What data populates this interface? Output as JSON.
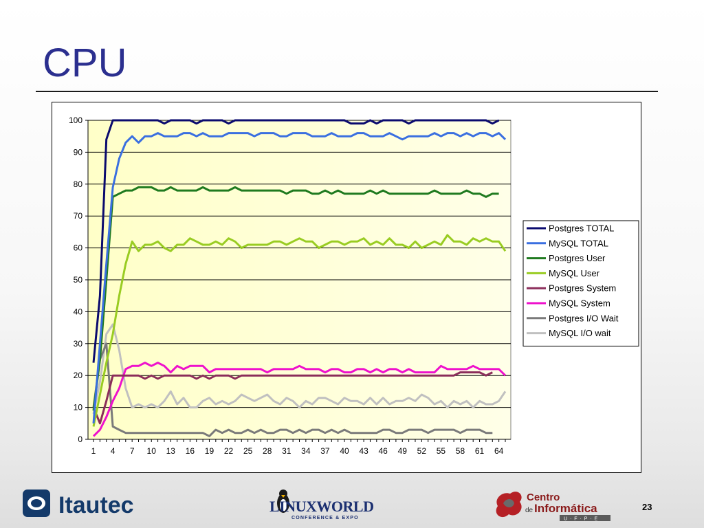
{
  "slide": {
    "title": "CPU",
    "page_number": "23"
  },
  "logos": {
    "itautec": "Itautec",
    "linuxworld": "LINUXWORLD",
    "linuxworld_sub": "CONFERENCE & EXPO",
    "centro_line1": "Centro",
    "centro_line2_prefix": "de",
    "centro_line2": "Informática",
    "centro_sub": "U · F · P · E"
  },
  "colors": {
    "title": "#2b2f8f",
    "plot_bg_top": "#ffffc8",
    "plot_bg_bottom": "#ffffe8"
  },
  "chart_data": {
    "type": "line",
    "title": "",
    "xlabel": "",
    "ylabel": "",
    "ylim": [
      0,
      100
    ],
    "yticks": [
      0,
      10,
      20,
      30,
      40,
      50,
      60,
      70,
      80,
      90,
      100
    ],
    "xticks": [
      1,
      4,
      7,
      10,
      13,
      16,
      19,
      22,
      25,
      28,
      31,
      34,
      37,
      40,
      43,
      46,
      49,
      52,
      55,
      58,
      61,
      64
    ],
    "x": [
      1,
      2,
      3,
      4,
      5,
      6,
      7,
      8,
      9,
      10,
      11,
      12,
      13,
      14,
      15,
      16,
      17,
      18,
      19,
      20,
      21,
      22,
      23,
      24,
      25,
      26,
      27,
      28,
      29,
      30,
      31,
      32,
      33,
      34,
      35,
      36,
      37,
      38,
      39,
      40,
      41,
      42,
      43,
      44,
      45,
      46,
      47,
      48,
      49,
      50,
      51,
      52,
      53,
      54,
      55,
      56,
      57,
      58,
      59,
      60,
      61,
      62,
      63,
      64,
      65
    ],
    "grid": "horizontal",
    "legend_position": "right",
    "series": [
      {
        "name": "Postgres TOTAL",
        "color": "#0a0a6e",
        "values": [
          24,
          45,
          94,
          100,
          100,
          100,
          100,
          100,
          100,
          100,
          100,
          99,
          100,
          100,
          100,
          100,
          99,
          100,
          100,
          100,
          100,
          99,
          100,
          100,
          100,
          100,
          100,
          100,
          100,
          100,
          100,
          100,
          100,
          100,
          100,
          100,
          100,
          100,
          100,
          100,
          99,
          99,
          99,
          100,
          99,
          100,
          100,
          100,
          100,
          99,
          100,
          100,
          100,
          100,
          100,
          100,
          100,
          100,
          100,
          100,
          100,
          100,
          99,
          100,
          null
        ]
      },
      {
        "name": "MySQL TOTAL",
        "color": "#3a6fe0",
        "values": [
          5,
          30,
          55,
          79,
          88,
          93,
          95,
          93,
          95,
          95,
          96,
          95,
          95,
          95,
          96,
          96,
          95,
          96,
          95,
          95,
          95,
          96,
          96,
          96,
          96,
          95,
          96,
          96,
          96,
          95,
          95,
          96,
          96,
          96,
          95,
          95,
          95,
          96,
          95,
          95,
          95,
          96,
          96,
          95,
          95,
          95,
          96,
          95,
          94,
          95,
          95,
          95,
          95,
          96,
          95,
          96,
          96,
          95,
          96,
          95,
          96,
          96,
          95,
          96,
          94
        ]
      },
      {
        "name": "Postgres User",
        "color": "#1f7a1f",
        "values": [
          9,
          25,
          50,
          76,
          77,
          78,
          78,
          79,
          79,
          79,
          78,
          78,
          79,
          78,
          78,
          78,
          78,
          79,
          78,
          78,
          78,
          78,
          79,
          78,
          78,
          78,
          78,
          78,
          78,
          78,
          77,
          78,
          78,
          78,
          77,
          77,
          78,
          77,
          78,
          77,
          77,
          77,
          77,
          78,
          77,
          78,
          77,
          77,
          77,
          77,
          77,
          77,
          77,
          78,
          77,
          77,
          77,
          77,
          78,
          77,
          77,
          76,
          77,
          77,
          null
        ]
      },
      {
        "name": "MySQL User",
        "color": "#99cc22",
        "values": [
          4,
          14,
          24,
          33,
          45,
          55,
          62,
          59,
          61,
          61,
          62,
          60,
          59,
          61,
          61,
          63,
          62,
          61,
          61,
          62,
          61,
          63,
          62,
          60,
          61,
          61,
          61,
          61,
          62,
          62,
          61,
          62,
          63,
          62,
          62,
          60,
          61,
          62,
          62,
          61,
          62,
          62,
          63,
          61,
          62,
          61,
          63,
          61,
          61,
          60,
          62,
          60,
          61,
          62,
          61,
          64,
          62,
          62,
          61,
          63,
          62,
          63,
          62,
          62,
          59
        ]
      },
      {
        "name": "Postgres System",
        "color": "#8b2d5a",
        "values": [
          10,
          5,
          12,
          20,
          20,
          20,
          20,
          20,
          19,
          20,
          19,
          20,
          20,
          20,
          20,
          20,
          19,
          20,
          19,
          20,
          20,
          20,
          19,
          20,
          20,
          20,
          20,
          20,
          20,
          20,
          20,
          20,
          20,
          20,
          20,
          20,
          20,
          20,
          20,
          20,
          20,
          20,
          20,
          20,
          20,
          20,
          20,
          20,
          20,
          20,
          20,
          20,
          20,
          20,
          20,
          20,
          20,
          21,
          21,
          21,
          21,
          20,
          21,
          null,
          null
        ]
      },
      {
        "name": "MySQL System",
        "color": "#ee11cc",
        "values": [
          1,
          3,
          7,
          12,
          16,
          22,
          23,
          23,
          24,
          23,
          24,
          23,
          21,
          23,
          22,
          23,
          23,
          23,
          21,
          22,
          22,
          22,
          22,
          22,
          22,
          22,
          22,
          21,
          22,
          22,
          22,
          22,
          23,
          22,
          22,
          22,
          21,
          22,
          22,
          21,
          21,
          22,
          22,
          21,
          22,
          21,
          22,
          22,
          21,
          22,
          21,
          21,
          21,
          21,
          23,
          22,
          22,
          22,
          22,
          23,
          22,
          22,
          22,
          22,
          20
        ]
      },
      {
        "name": "Postgres I/O Wait",
        "color": "#7a7a7a",
        "values": [
          10,
          25,
          30,
          4,
          3,
          2,
          2,
          2,
          2,
          2,
          2,
          2,
          2,
          2,
          2,
          2,
          2,
          2,
          1,
          3,
          2,
          3,
          2,
          2,
          3,
          2,
          3,
          2,
          2,
          3,
          3,
          2,
          3,
          2,
          3,
          3,
          2,
          3,
          2,
          3,
          2,
          2,
          2,
          2,
          2,
          3,
          3,
          2,
          2,
          3,
          3,
          3,
          2,
          3,
          3,
          3,
          3,
          2,
          3,
          3,
          3,
          2,
          2,
          null,
          null
        ]
      },
      {
        "name": "MySQL I/O wait",
        "color": "#c0c0c0",
        "values": [
          8,
          18,
          33,
          36,
          28,
          16,
          10,
          11,
          10,
          11,
          10,
          12,
          15,
          11,
          13,
          10,
          10,
          12,
          13,
          11,
          12,
          11,
          12,
          14,
          13,
          12,
          13,
          14,
          12,
          11,
          13,
          12,
          10,
          12,
          11,
          13,
          13,
          12,
          11,
          13,
          12,
          12,
          11,
          13,
          11,
          13,
          11,
          12,
          12,
          13,
          12,
          14,
          13,
          11,
          12,
          10,
          12,
          11,
          12,
          10,
          12,
          11,
          11,
          12,
          15
        ]
      }
    ]
  }
}
